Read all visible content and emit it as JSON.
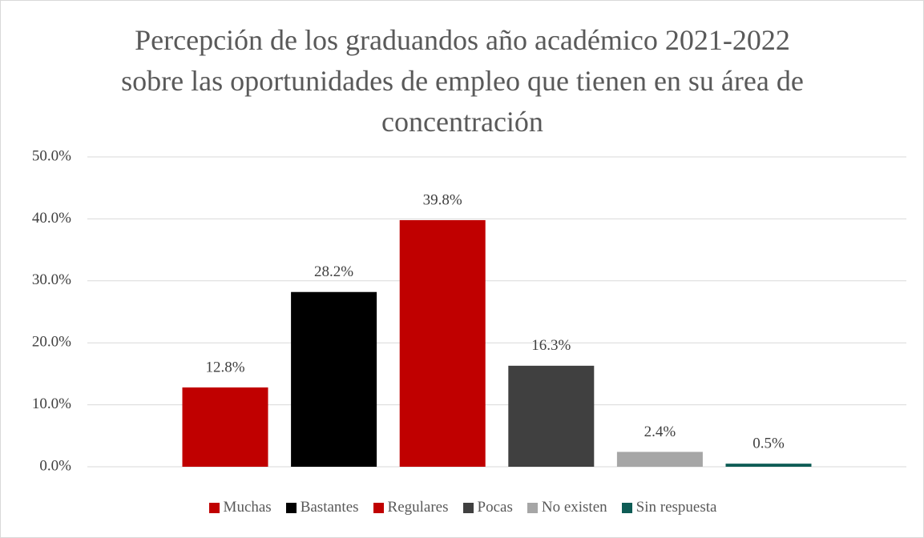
{
  "chart_data": {
    "type": "bar",
    "title": "Percepción de los graduandos año académico 2021-2022 sobre las oportunidades de empleo que tienen en su área de concentración",
    "categories": [
      null
    ],
    "series": [
      {
        "name": "Muchas",
        "color": "#c00000",
        "values": [
          12.8
        ],
        "value_labels": [
          "12.8%"
        ]
      },
      {
        "name": "Bastantes",
        "color": "#000000",
        "values": [
          28.2
        ],
        "value_labels": [
          "28.2%"
        ]
      },
      {
        "name": "Regulares",
        "color": "#c00000",
        "values": [
          39.8
        ],
        "value_labels": [
          "39.8%"
        ]
      },
      {
        "name": "Pocas",
        "color": "#404040",
        "values": [
          16.3
        ],
        "value_labels": [
          "16.3%"
        ]
      },
      {
        "name": "No existen",
        "color": "#a6a6a6",
        "values": [
          2.4
        ],
        "value_labels": [
          "2.4%"
        ]
      },
      {
        "name": "Sin respuesta",
        "color": "#0e5c55",
        "values": [
          0.5
        ],
        "value_labels": [
          "0.5%"
        ]
      }
    ],
    "ylim": [
      0,
      50
    ],
    "yticks": [
      {
        "value": 0,
        "label": "0.0%"
      },
      {
        "value": 10,
        "label": "10.0%"
      },
      {
        "value": 20,
        "label": "20.0%"
      },
      {
        "value": 30,
        "label": "30.0%"
      },
      {
        "value": 40,
        "label": "40.0%"
      },
      {
        "value": 50,
        "label": "50.0%"
      }
    ],
    "grid": true,
    "legend": "bottom"
  }
}
